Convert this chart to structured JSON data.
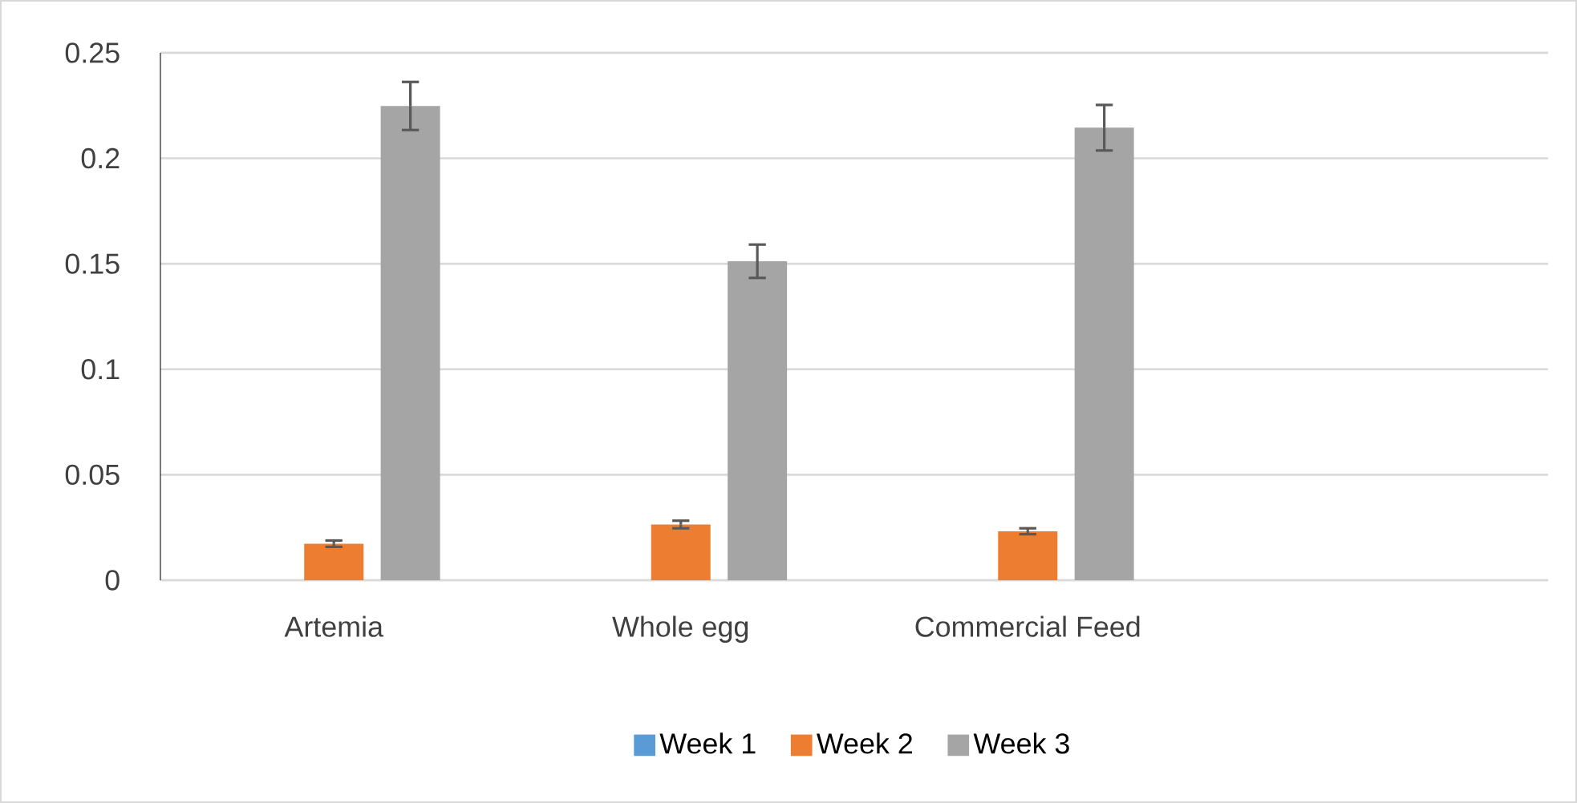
{
  "chart_data": {
    "type": "bar",
    "categories": [
      "Artemia",
      "Whole egg",
      "Commercial Feed",
      null
    ],
    "series": [
      {
        "name": "Week 1",
        "color": "#5b9bd5",
        "values": [
          0,
          0,
          0,
          null
        ]
      },
      {
        "name": "Week 2",
        "color": "#ed7d31",
        "values": [
          0.0173,
          0.0264,
          0.0232,
          null
        ],
        "errors": [
          0.0015,
          0.0018,
          0.0014,
          null
        ]
      },
      {
        "name": "Week 3",
        "color": "#a5a5a5",
        "values": [
          0.2248,
          0.1512,
          0.2145,
          null
        ],
        "errors": [
          0.0114,
          0.0079,
          0.0108,
          null
        ]
      }
    ],
    "ylim": [
      0,
      0.25
    ],
    "yticks": [
      0,
      0.05,
      0.1,
      0.15,
      0.2,
      0.25
    ],
    "grid": "y",
    "legend": "bottom"
  }
}
